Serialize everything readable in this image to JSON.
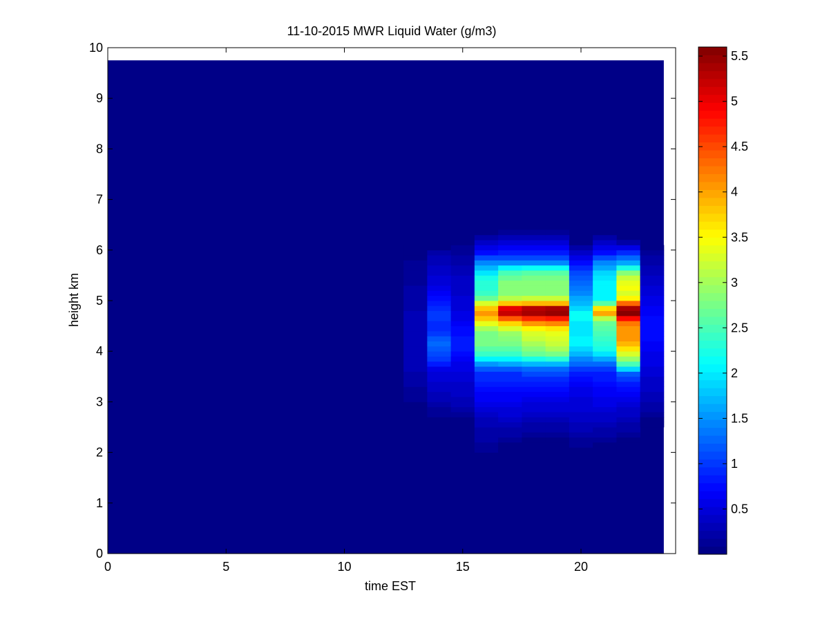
{
  "chart_data": {
    "type": "heatmap",
    "title": "11-10-2015 MWR Liquid Water (g/m3)",
    "xlabel": "time EST",
    "ylabel": "height km",
    "xlim": [
      0,
      24
    ],
    "ylim": [
      0,
      10
    ],
    "x_ticks": [
      0,
      5,
      10,
      15,
      20
    ],
    "x_tick_labels": [
      "0",
      "5",
      "10",
      "15",
      "20"
    ],
    "y_ticks": [
      0,
      1,
      2,
      3,
      4,
      5,
      6,
      7,
      8,
      9,
      10
    ],
    "y_tick_labels": [
      "0",
      "1",
      "2",
      "3",
      "4",
      "5",
      "6",
      "7",
      "8",
      "9",
      "10"
    ],
    "data_extent": {
      "x": [
        0,
        23.5
      ],
      "y": [
        0,
        9.75
      ]
    },
    "grid": false,
    "colormap": "jet",
    "colorbar": {
      "range": [
        0,
        5.6
      ],
      "ticks": [
        0.5,
        1,
        1.5,
        2,
        2.5,
        3,
        3.5,
        4,
        4.5,
        5,
        5.5
      ],
      "tick_labels": [
        "0.5",
        "1",
        "1.5",
        "2",
        "2.5",
        "3",
        "3.5",
        "4",
        "4.5",
        "5",
        "5.5"
      ]
    },
    "columns": [
      {
        "t0": 12.5,
        "t1": 13.5,
        "profile": [
          [
            2.8,
            0.0
          ],
          [
            3.2,
            0.15
          ],
          [
            4.0,
            0.35
          ],
          [
            4.6,
            0.3
          ],
          [
            5.2,
            0.2
          ],
          [
            6.0,
            0.05
          ],
          [
            6.2,
            0.0
          ]
        ]
      },
      {
        "t0": 13.5,
        "t1": 14.5,
        "profile": [
          [
            2.6,
            0.0
          ],
          [
            3.0,
            0.25
          ],
          [
            3.6,
            0.5
          ],
          [
            3.85,
            1.0
          ],
          [
            4.15,
            1.3
          ],
          [
            4.45,
            0.9
          ],
          [
            4.7,
            1.0
          ],
          [
            5.0,
            0.8
          ],
          [
            5.3,
            0.5
          ],
          [
            5.9,
            0.25
          ],
          [
            6.1,
            0.0
          ]
        ]
      },
      {
        "t0": 14.5,
        "t1": 15.5,
        "profile": [
          [
            2.6,
            0.0
          ],
          [
            3.0,
            0.3
          ],
          [
            3.8,
            0.6
          ],
          [
            4.2,
            0.9
          ],
          [
            4.6,
            0.6
          ],
          [
            5.0,
            0.45
          ],
          [
            5.5,
            0.35
          ],
          [
            6.0,
            0.15
          ],
          [
            6.2,
            0.0
          ]
        ]
      },
      {
        "t0": 15.5,
        "t1": 16.5,
        "profile": [
          [
            1.8,
            0.0
          ],
          [
            2.0,
            0.1
          ],
          [
            2.6,
            0.3
          ],
          [
            3.0,
            0.6
          ],
          [
            3.3,
            0.75
          ],
          [
            3.6,
            1.0
          ],
          [
            3.75,
            1.5
          ],
          [
            3.9,
            2.3
          ],
          [
            4.1,
            2.7
          ],
          [
            4.4,
            2.8
          ],
          [
            4.6,
            3.6
          ],
          [
            4.75,
            4.1
          ],
          [
            4.85,
            3.8
          ],
          [
            4.95,
            3.3
          ],
          [
            5.1,
            2.4
          ],
          [
            5.4,
            2.3
          ],
          [
            5.6,
            1.9
          ],
          [
            5.75,
            1.4
          ],
          [
            6.0,
            0.6
          ],
          [
            6.4,
            0.0
          ]
        ]
      },
      {
        "t0": 16.5,
        "t1": 17.5,
        "profile": [
          [
            1.9,
            0.0
          ],
          [
            2.2,
            0.1
          ],
          [
            2.6,
            0.35
          ],
          [
            3.0,
            0.6
          ],
          [
            3.3,
            0.75
          ],
          [
            3.6,
            1.0
          ],
          [
            3.75,
            1.6
          ],
          [
            3.9,
            2.3
          ],
          [
            4.1,
            2.7
          ],
          [
            4.4,
            3.0
          ],
          [
            4.6,
            4.0
          ],
          [
            4.75,
            5.2
          ],
          [
            4.85,
            5.0
          ],
          [
            4.95,
            3.8
          ],
          [
            5.1,
            2.8
          ],
          [
            5.4,
            2.8
          ],
          [
            5.6,
            2.4
          ],
          [
            5.75,
            1.4
          ],
          [
            6.0,
            0.7
          ],
          [
            6.4,
            0.0
          ]
        ]
      },
      {
        "t0": 17.5,
        "t1": 18.5,
        "profile": [
          [
            2.2,
            0.0
          ],
          [
            2.4,
            0.15
          ],
          [
            2.8,
            0.4
          ],
          [
            3.3,
            0.8
          ],
          [
            3.6,
            1.1
          ],
          [
            3.75,
            1.7
          ],
          [
            3.9,
            2.5
          ],
          [
            4.1,
            3.0
          ],
          [
            4.4,
            3.3
          ],
          [
            4.6,
            4.3
          ],
          [
            4.75,
            5.4
          ],
          [
            4.85,
            5.3
          ],
          [
            4.95,
            3.9
          ],
          [
            5.1,
            2.9
          ],
          [
            5.4,
            2.8
          ],
          [
            5.6,
            2.5
          ],
          [
            5.75,
            1.4
          ],
          [
            6.0,
            0.7
          ],
          [
            6.4,
            0.0
          ]
        ]
      },
      {
        "t0": 18.5,
        "t1": 19.5,
        "profile": [
          [
            2.2,
            0.0
          ],
          [
            2.4,
            0.15
          ],
          [
            2.8,
            0.4
          ],
          [
            3.3,
            0.8
          ],
          [
            3.6,
            1.1
          ],
          [
            3.75,
            1.7
          ],
          [
            3.9,
            2.6
          ],
          [
            4.1,
            3.2
          ],
          [
            4.4,
            3.4
          ],
          [
            4.6,
            4.4
          ],
          [
            4.75,
            5.5
          ],
          [
            4.85,
            5.4
          ],
          [
            4.95,
            3.9
          ],
          [
            5.1,
            2.9
          ],
          [
            5.4,
            2.8
          ],
          [
            5.6,
            2.5
          ],
          [
            5.75,
            1.4
          ],
          [
            6.0,
            0.7
          ],
          [
            6.4,
            0.0
          ]
        ]
      },
      {
        "t0": 19.5,
        "t1": 20.5,
        "profile": [
          [
            2.0,
            0.0
          ],
          [
            2.6,
            0.35
          ],
          [
            3.3,
            0.6
          ],
          [
            3.6,
            0.9
          ],
          [
            3.9,
            1.6
          ],
          [
            4.2,
            2.1
          ],
          [
            4.5,
            1.9
          ],
          [
            4.7,
            2.2
          ],
          [
            4.9,
            1.8
          ],
          [
            5.2,
            1.4
          ],
          [
            5.6,
            1.0
          ],
          [
            5.9,
            0.5
          ],
          [
            6.2,
            0.0
          ]
        ]
      },
      {
        "t0": 20.5,
        "t1": 21.5,
        "profile": [
          [
            1.9,
            0.0
          ],
          [
            2.2,
            0.1
          ],
          [
            2.6,
            0.35
          ],
          [
            3.0,
            0.55
          ],
          [
            3.6,
            0.9
          ],
          [
            3.8,
            1.4
          ],
          [
            4.0,
            2.2
          ],
          [
            4.3,
            2.4
          ],
          [
            4.6,
            2.7
          ],
          [
            4.75,
            4.0
          ],
          [
            4.85,
            3.6
          ],
          [
            5.0,
            2.1
          ],
          [
            5.5,
            2.0
          ],
          [
            5.75,
            1.4
          ],
          [
            6.0,
            0.6
          ],
          [
            6.4,
            0.0
          ]
        ]
      },
      {
        "t0": 21.5,
        "t1": 22.5,
        "profile": [
          [
            2.1,
            0.0
          ],
          [
            2.4,
            0.15
          ],
          [
            3.0,
            0.5
          ],
          [
            3.3,
            0.75
          ],
          [
            3.55,
            1.2
          ],
          [
            3.75,
            2.5
          ],
          [
            3.9,
            3.1
          ],
          [
            4.1,
            3.8
          ],
          [
            4.3,
            4.1
          ],
          [
            4.5,
            4.0
          ],
          [
            4.6,
            4.5
          ],
          [
            4.75,
            5.6
          ],
          [
            4.85,
            5.4
          ],
          [
            4.95,
            4.3
          ],
          [
            5.1,
            3.2
          ],
          [
            5.3,
            3.5
          ],
          [
            5.5,
            3.1
          ],
          [
            5.75,
            1.6
          ],
          [
            6.0,
            0.7
          ],
          [
            6.2,
            0.0
          ]
        ]
      },
      {
        "t0": 22.5,
        "t1": 23.5,
        "profile": [
          [
            2.5,
            0.0
          ],
          [
            3.0,
            0.25
          ],
          [
            3.5,
            0.45
          ],
          [
            4.0,
            0.6
          ],
          [
            4.5,
            0.8
          ],
          [
            5.0,
            0.55
          ],
          [
            5.5,
            0.35
          ],
          [
            5.9,
            0.15
          ],
          [
            6.1,
            0.0
          ]
        ]
      }
    ]
  }
}
